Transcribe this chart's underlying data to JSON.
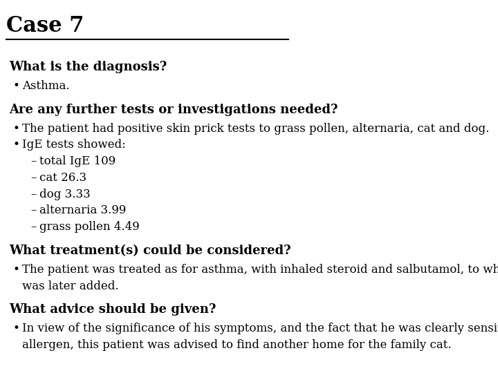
{
  "title": "Case 7",
  "background_color": "#ffffff",
  "title_fontsize": 22,
  "title_fontweight": "bold",
  "sections": [
    {
      "heading": "What is the diagnosis?",
      "heading_bold": true,
      "heading_fontsize": 13,
      "items": [
        {
          "level": 1,
          "text": "Asthma.",
          "bold": false,
          "fontsize": 12
        }
      ]
    },
    {
      "heading": "Are any further tests or investigations needed?",
      "heading_bold": true,
      "heading_fontsize": 13,
      "items": [
        {
          "level": 1,
          "text": "The patient had positive skin prick tests to grass pollen, alternaria, cat and dog.",
          "bold": false,
          "fontsize": 12
        },
        {
          "level": 1,
          "text": "IgE tests showed:",
          "bold": false,
          "fontsize": 12
        },
        {
          "level": 2,
          "text": "total IgE 109",
          "bold": false,
          "fontsize": 12
        },
        {
          "level": 2,
          "text": "cat 26.3",
          "bold": false,
          "fontsize": 12
        },
        {
          "level": 2,
          "text": "dog 3.33",
          "bold": false,
          "fontsize": 12
        },
        {
          "level": 2,
          "text": "alternaria 3.99",
          "bold": false,
          "fontsize": 12
        },
        {
          "level": 2,
          "text": "grass pollen 4.49",
          "bold": false,
          "fontsize": 12
        }
      ]
    },
    {
      "heading": "What treatment(s) could be considered?",
      "heading_bold": true,
      "heading_fontsize": 13,
      "items": [
        {
          "level": 1,
          "text": "The patient was treated as for asthma, with inhaled steroid and salbutamol, to which salmeterol\nwas later added.",
          "bold": false,
          "fontsize": 12
        }
      ]
    },
    {
      "heading": "What advice should be given?",
      "heading_bold": true,
      "heading_fontsize": 13,
      "items": [
        {
          "level": 1,
          "text": "In view of the significance of his symptoms, and the fact that he was clearly sensitised to cat\nallergen, this patient was advised to find another home for the family cat.",
          "bold": false,
          "fontsize": 12
        }
      ]
    }
  ]
}
